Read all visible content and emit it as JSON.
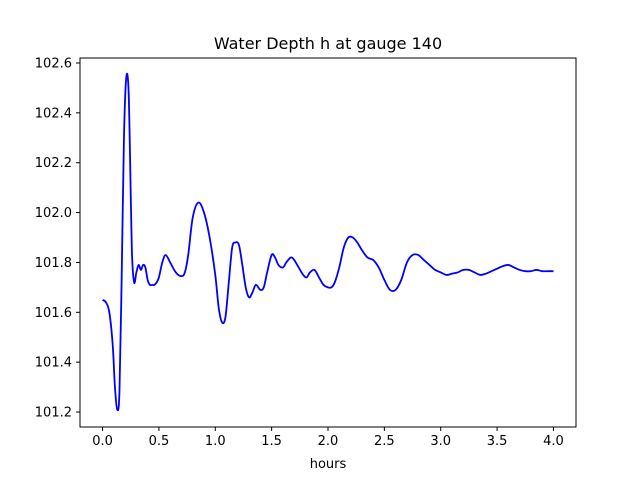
{
  "chart_data": {
    "type": "line",
    "title": "Water Depth h at gauge 140",
    "xlabel": "hours",
    "ylabel": "",
    "xlim": [
      -0.2,
      4.2
    ],
    "ylim": [
      101.14,
      102.62
    ],
    "xticks": [
      0.0,
      0.5,
      1.0,
      1.5,
      2.0,
      2.5,
      3.0,
      3.5,
      4.0
    ],
    "xtick_labels": [
      "0.0",
      "0.5",
      "1.0",
      "1.5",
      "2.0",
      "2.5",
      "3.0",
      "3.5",
      "4.0"
    ],
    "yticks": [
      101.2,
      101.4,
      101.6,
      101.8,
      102.0,
      102.2,
      102.4,
      102.6
    ],
    "ytick_labels": [
      "101.2",
      "101.4",
      "101.6",
      "101.8",
      "102.0",
      "102.2",
      "102.4",
      "102.6"
    ],
    "grid": false,
    "series": [
      {
        "color": "#0000ff",
        "x": [
          0.0,
          0.03,
          0.06,
          0.09,
          0.11,
          0.13,
          0.15,
          0.17,
          0.19,
          0.21,
          0.23,
          0.245,
          0.26,
          0.28,
          0.3,
          0.32,
          0.34,
          0.36,
          0.38,
          0.4,
          0.42,
          0.44,
          0.46,
          0.48,
          0.5,
          0.53,
          0.56,
          0.6,
          0.65,
          0.7,
          0.73,
          0.76,
          0.8,
          0.85,
          0.9,
          0.95,
          1.0,
          1.03,
          1.06,
          1.09,
          1.12,
          1.15,
          1.18,
          1.21,
          1.24,
          1.27,
          1.3,
          1.33,
          1.36,
          1.4,
          1.43,
          1.46,
          1.5,
          1.53,
          1.56,
          1.6,
          1.63,
          1.67,
          1.7,
          1.74,
          1.78,
          1.81,
          1.84,
          1.88,
          1.92,
          1.96,
          2.0,
          2.03,
          2.06,
          2.1,
          2.14,
          2.18,
          2.22,
          2.26,
          2.3,
          2.35,
          2.4,
          2.45,
          2.5,
          2.55,
          2.6,
          2.65,
          2.7,
          2.75,
          2.8,
          2.85,
          2.9,
          2.95,
          3.0,
          3.05,
          3.1,
          3.15,
          3.2,
          3.25,
          3.3,
          3.35,
          3.4,
          3.45,
          3.5,
          3.55,
          3.6,
          3.65,
          3.7,
          3.75,
          3.8,
          3.85,
          3.9,
          3.95,
          4.0
        ],
        "y": [
          101.65,
          101.64,
          101.6,
          101.47,
          101.3,
          101.21,
          101.28,
          101.75,
          102.3,
          102.54,
          102.5,
          102.2,
          101.85,
          101.72,
          101.76,
          101.79,
          101.77,
          101.79,
          101.78,
          101.73,
          101.71,
          101.71,
          101.71,
          101.72,
          101.74,
          101.8,
          101.83,
          101.8,
          101.76,
          101.745,
          101.76,
          101.83,
          101.98,
          102.04,
          102.0,
          101.9,
          101.75,
          101.62,
          101.56,
          101.58,
          101.72,
          101.86,
          101.88,
          101.87,
          101.79,
          101.7,
          101.66,
          101.68,
          101.71,
          101.69,
          101.7,
          101.76,
          101.83,
          101.82,
          101.79,
          101.78,
          101.8,
          101.82,
          101.81,
          101.78,
          101.75,
          101.74,
          101.76,
          101.77,
          101.74,
          101.71,
          101.7,
          101.7,
          101.72,
          101.78,
          101.86,
          101.9,
          101.9,
          101.88,
          101.85,
          101.82,
          101.81,
          101.78,
          101.73,
          101.69,
          101.69,
          101.73,
          101.8,
          101.83,
          101.83,
          101.81,
          101.79,
          101.77,
          101.76,
          101.75,
          101.755,
          101.76,
          101.77,
          101.77,
          101.76,
          101.75,
          101.755,
          101.765,
          101.775,
          101.785,
          101.79,
          101.78,
          101.77,
          101.765,
          101.765,
          101.77,
          101.765,
          101.765,
          101.765
        ]
      }
    ]
  }
}
